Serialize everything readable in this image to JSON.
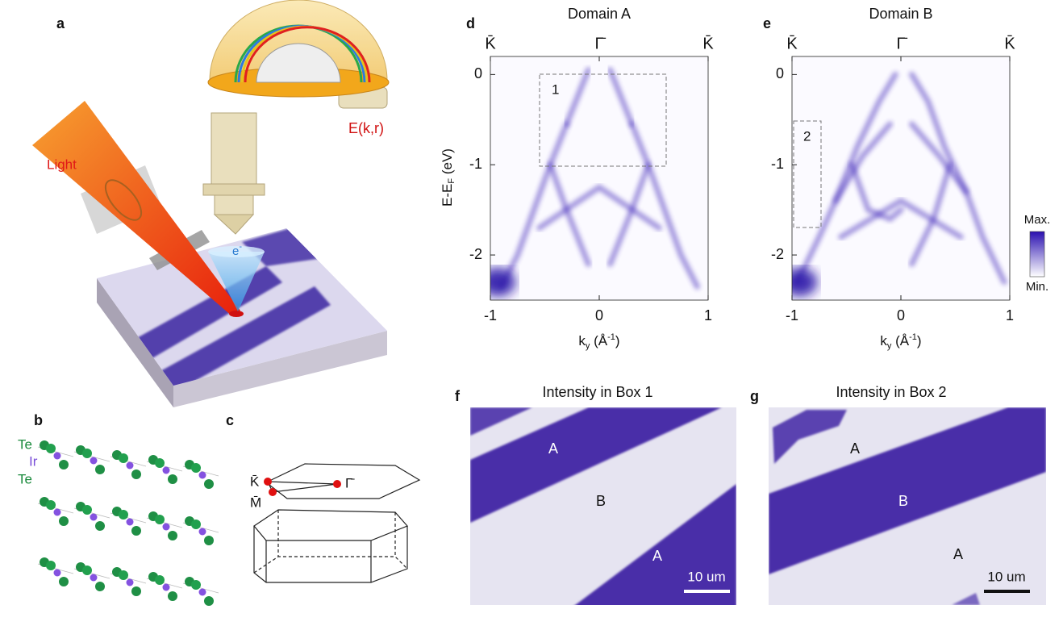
{
  "panels": {
    "a": {
      "label": "a",
      "light": "Light",
      "electron": {
        "base": "e",
        "sup": "-"
      },
      "energy": "E(k,r)"
    },
    "b": {
      "label": "b",
      "atoms": [
        "Te",
        "Ir",
        "Te"
      ]
    },
    "c": {
      "label": "c",
      "points": [
        "K̄",
        "M̄",
        "Γ̄"
      ]
    },
    "d": {
      "label": "d",
      "title": "Domain A",
      "top_labels": [
        "K̄",
        "Γ̄",
        "K̄"
      ],
      "box": "1"
    },
    "e": {
      "label": "e",
      "title": "Domain B",
      "top_labels": [
        "K̄",
        "Γ̄",
        "K̄"
      ],
      "box": "2"
    },
    "axes": {
      "ylabel": {
        "main": "E-E",
        "sub": "F",
        "unit": " (eV)"
      },
      "xlabel": {
        "main": "k",
        "sub": "y",
        "unit": " (Å",
        "sup": "-1",
        "close": ")"
      },
      "xlim": [
        -1,
        1
      ],
      "ylim": [
        -2.5,
        0.2
      ],
      "xticks": [
        -1,
        0,
        1
      ],
      "yticks": [
        0,
        -1,
        -2
      ]
    },
    "colorbar": {
      "max": "Max.",
      "min": "Min."
    },
    "f": {
      "label": "f",
      "title": "Intensity in Box 1",
      "domains": [
        "A",
        "B",
        "A"
      ],
      "scale": "10 um"
    },
    "g": {
      "label": "g",
      "title": "Intensity in Box 2",
      "domains": [
        "A",
        "B",
        "A"
      ],
      "scale": "10 um"
    }
  }
}
